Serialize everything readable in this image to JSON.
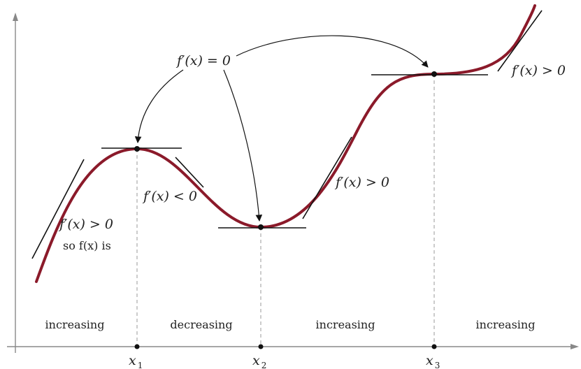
{
  "curve_color": "#8b1a2a",
  "axis_color": "#888888",
  "guide_color": "#9a9a9a",
  "tangent_color": "#111111",
  "labels": {
    "critical": "f′(x) = 0",
    "left_positive": "f′(x) > 0",
    "left_note": "so f(x) is",
    "negative": "f′(x) < 0",
    "middle_positive": "f′(x) > 0",
    "right_positive": "f′(x) > 0"
  },
  "regions": [
    "increasing",
    "decreasing",
    "increasing",
    "increasing"
  ],
  "ticks": [
    {
      "base": "x",
      "sub": "1"
    },
    {
      "base": "x",
      "sub": "2"
    },
    {
      "base": "x",
      "sub": "3"
    }
  ]
}
